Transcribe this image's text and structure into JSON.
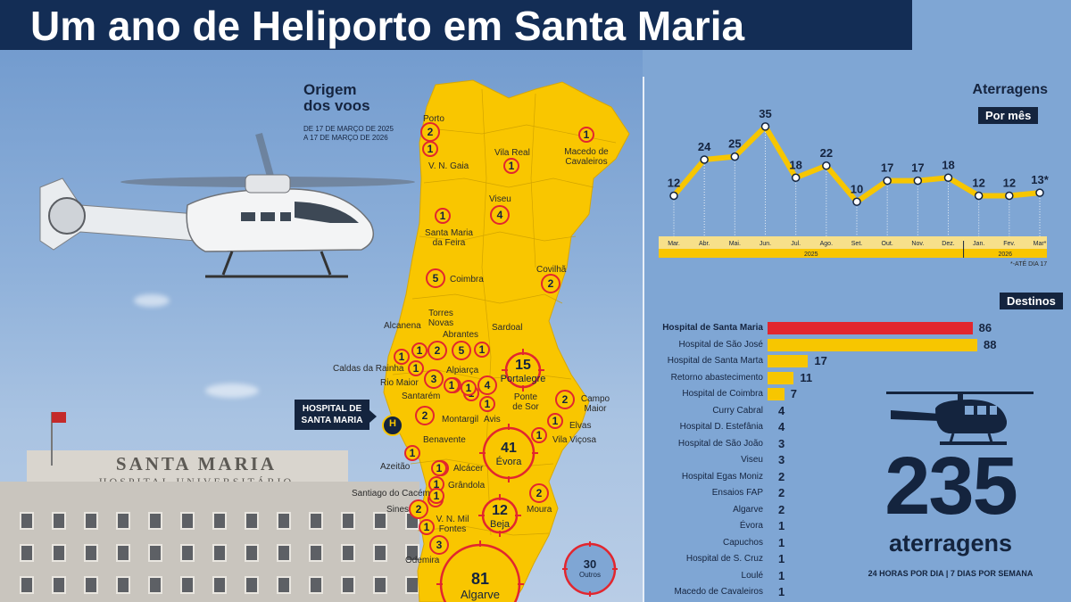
{
  "title": "Um ano de Heliporto em Santa Maria",
  "photo": {
    "hospital_sign_line1": "SANTA MARIA",
    "hospital_sign_line2": "HOSPITAL UNIVERSITÁRIO"
  },
  "map": {
    "heading_line1": "Origem",
    "heading_line2": "dos voos",
    "subheading_line1": "DE 17 DE MARÇO DE 2025",
    "subheading_line2": "A 17 DE MARÇO DE 2026",
    "hospital_marker_label_line1": "HOSPITAL DE",
    "hospital_marker_label_line2": "SANTA MARIA",
    "hospital_marker_symbol": "H",
    "origins": [
      {
        "name": "Porto",
        "value": 2
      },
      {
        "name": "V. N. Gaia",
        "value": 1
      },
      {
        "name": "Vila Real",
        "value": 1
      },
      {
        "name": "Macedo de Cavaleiros",
        "value": 1
      },
      {
        "name": "Viseu",
        "value": 4
      },
      {
        "name": "Santa Maria da Feira",
        "value": 1
      },
      {
        "name": "Coimbra",
        "value": 5
      },
      {
        "name": "Covilhã",
        "value": 2
      },
      {
        "name": "Torres Novas",
        "value": 2
      },
      {
        "name": "Sardoal",
        "value": 1
      },
      {
        "name": "Alcanena",
        "value": 1
      },
      {
        "name": "Abrantes",
        "value": 5
      },
      {
        "name": "Caldas da Rainha",
        "value": 1
      },
      {
        "name": "Portalegre",
        "value": 15
      },
      {
        "name": "Rio Maior",
        "value": 3
      },
      {
        "name": "Alpiarça",
        "value": 1
      },
      {
        "name": "Santarém",
        "value": 1
      },
      {
        "name": "Ponte de Sor",
        "value": 4
      },
      {
        "name": "Campo Maior",
        "value": 2
      },
      {
        "name": "Montargil",
        "value": 1
      },
      {
        "name": "Avis",
        "value": 1
      },
      {
        "name": "Elvas",
        "value": 1
      },
      {
        "name": "Benavente",
        "value": 2
      },
      {
        "name": "Vila Viçosa",
        "value": 1
      },
      {
        "name": "Évora",
        "value": 41
      },
      {
        "name": "Azeitão",
        "value": 1
      },
      {
        "name": "Alcácer",
        "value": 1
      },
      {
        "name": "Grândola",
        "value": 1
      },
      {
        "name": "Santiago do Cacém",
        "value": 1
      },
      {
        "name": "Moura",
        "value": 2
      },
      {
        "name": "Sines",
        "value": 2
      },
      {
        "name": "Beja",
        "value": 12
      },
      {
        "name": "V. N. Mil Fontes",
        "value": 1
      },
      {
        "name": "Odemira",
        "value": 3
      },
      {
        "name": "Algarve",
        "value": 81
      },
      {
        "name": "Outros",
        "value": 30
      }
    ],
    "extra_unlabeled_markers": [
      1,
      1,
      1,
      1
    ]
  },
  "chart_data": [
    {
      "type": "line",
      "title": "Aterragens",
      "subtitle": "Por mês",
      "categories": [
        "Mar.",
        "Abr.",
        "Mai.",
        "Jun.",
        "Jul.",
        "Ago.",
        "Set.",
        "Out.",
        "Nov.",
        "Dez.",
        "Jan.",
        "Fev.",
        "Mar*"
      ],
      "value_labels": [
        "12",
        "24",
        "25",
        "35",
        "18",
        "22",
        "10",
        "17",
        "17",
        "18",
        "12",
        "12",
        "13*"
      ],
      "series": [
        {
          "values": [
            12,
            24,
            25,
            35,
            18,
            22,
            10,
            17,
            17,
            18,
            12,
            12,
            13
          ]
        }
      ],
      "year_labels": [
        "2025",
        "2026"
      ],
      "footnote": "*-ATÉ DIA 17",
      "ylim": [
        0,
        40
      ],
      "line_color": "#f7c600"
    },
    {
      "type": "bar",
      "title": "Destinos",
      "categories": [
        "Hospital de Santa Maria",
        "Hospital de São José",
        "Hospital de Santa Marta",
        "Retorno abastecimento",
        "Hospital de Coimbra",
        "Curry Cabral",
        "Hospital D. Estefânia",
        "Hospital de São João",
        "Viseu",
        "Hospital Egas Moniz",
        "Ensaios FAP",
        "Algarve",
        "Évora",
        "Capuchos",
        "Hospital de S. Cruz",
        "Loulé",
        "Macedo de Cavaleiros"
      ],
      "values": [
        86,
        88,
        17,
        11,
        7,
        4,
        4,
        3,
        3,
        2,
        2,
        2,
        1,
        1,
        1,
        1,
        1
      ],
      "highlight_index": 0,
      "highlight_color": "#e2262e",
      "bar_color": "#f7c600",
      "xlim": [
        0,
        88
      ]
    }
  ],
  "total": {
    "number": "235",
    "label": "aterragens",
    "sub": "24 HORAS POR DIA | 7 DIAS POR SEMANA"
  },
  "colors": {
    "background": "#7fa6d4",
    "title_bar": "#132d55",
    "map_fill": "#f9c600",
    "marker_ring": "#e2262e",
    "dark_navy": "#14243e"
  }
}
